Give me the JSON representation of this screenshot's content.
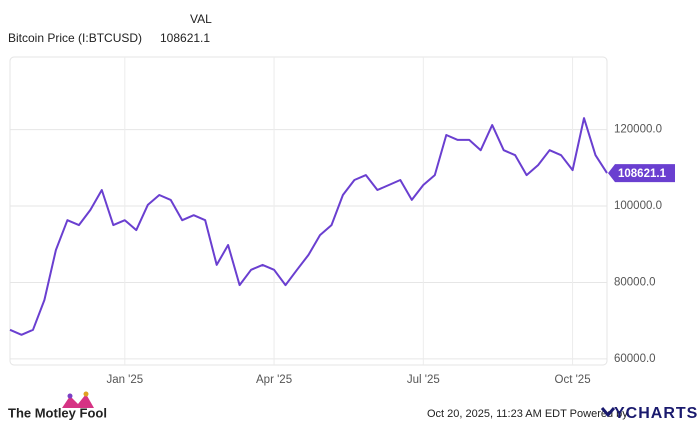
{
  "chart_data": {
    "type": "line",
    "column_header": "VAL",
    "categories": [
      null,
      null,
      null,
      null,
      null,
      null,
      null,
      null,
      null,
      null,
      "Jan '25",
      null,
      null,
      null,
      null,
      null,
      null,
      null,
      null,
      null,
      null,
      null,
      null,
      "Apr '25",
      null,
      null,
      null,
      null,
      null,
      null,
      null,
      null,
      null,
      null,
      null,
      null,
      "Jul '25",
      null,
      null,
      null,
      null,
      null,
      null,
      null,
      null,
      null,
      null,
      null,
      null,
      "Oct '25",
      null,
      null,
      null
    ],
    "series": [
      {
        "name": "Bitcoin Price (I:BTCUSD)",
        "color": "#6a3fd0",
        "values": [
          67600,
          66300,
          67600,
          75400,
          88500,
          96300,
          95000,
          99000,
          104200,
          95000,
          96300,
          93700,
          100300,
          102900,
          101600,
          96300,
          97600,
          96300,
          84600,
          89800,
          79300,
          83300,
          84600,
          83300,
          79300,
          83300,
          87200,
          92400,
          95000,
          102900,
          106800,
          108100,
          104200,
          105500,
          106800,
          101600,
          105500,
          108100,
          118600,
          117300,
          117300,
          114600,
          121200,
          114600,
          113300,
          108100,
          110700,
          114600,
          113300,
          109400,
          123000,
          113300,
          108621.1
        ]
      }
    ],
    "ylim": [
      58400,
      139000
    ],
    "yticks": [
      {
        "value": 60000,
        "label": "60000.0"
      },
      {
        "value": 80000,
        "label": "80000.0"
      },
      {
        "value": 100000,
        "label": "100000.0"
      },
      {
        "value": 120000,
        "label": "120000.0"
      }
    ],
    "grid": true
  },
  "footer": {
    "brand": "The Motley Fool",
    "timestamp": "Oct 20, 2025, 11:23 AM EDT Powered by",
    "provider": "YCHARTS"
  }
}
